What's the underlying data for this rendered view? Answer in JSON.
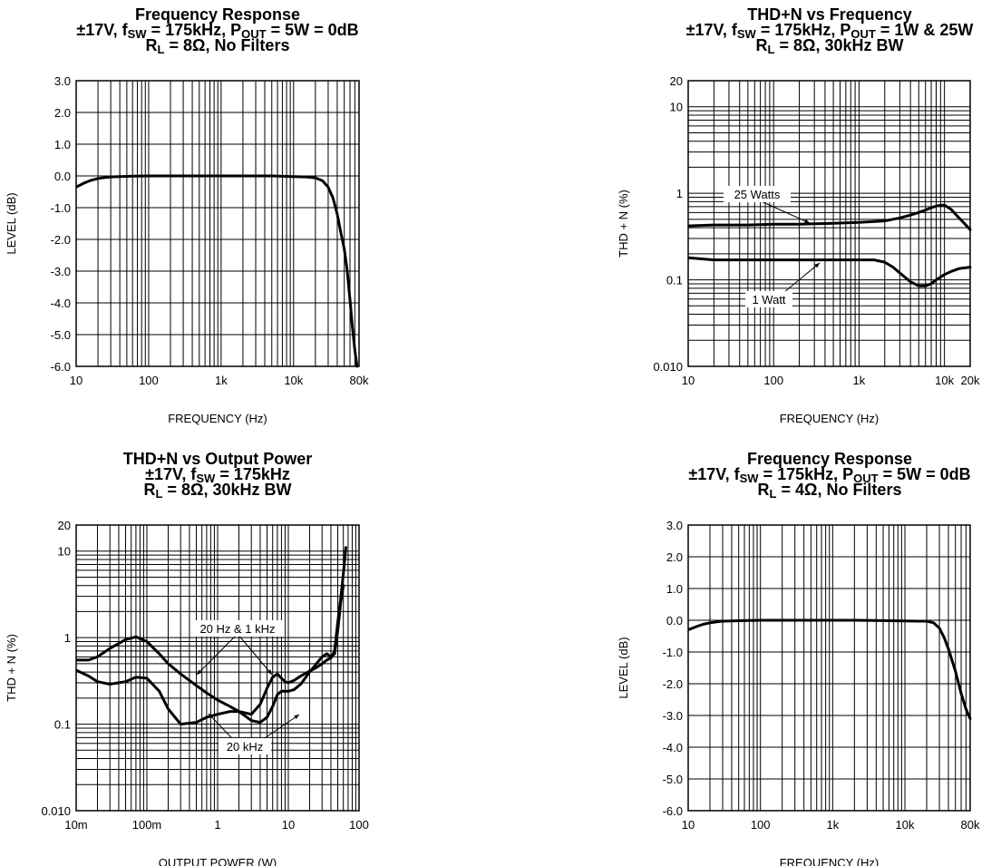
{
  "chart_data": [
    {
      "type": "line",
      "title": {
        "line1": "Frequency Response",
        "line2_pre": "±17V, f",
        "line2_sub1": "SW",
        "line2_mid": " = 175kHz, P",
        "line2_sub2": "OUT",
        "line2_post": " = 5W = 0dB",
        "line3_pre": "R",
        "line3_sub": "L",
        "line3_post": " = 8Ω, No Filters"
      },
      "xlabel": "FREQUENCY (Hz)",
      "ylabel": "LEVEL (dB)",
      "xscale": "log",
      "xlim": [
        10,
        80000
      ],
      "ylim": [
        -6.0,
        3.0
      ],
      "xticks": [
        {
          "v": 10,
          "label": "10"
        },
        {
          "v": 100,
          "label": "100"
        },
        {
          "v": 1000,
          "label": "1k"
        },
        {
          "v": 10000,
          "label": "10k"
        },
        {
          "v": 80000,
          "label": "80k"
        }
      ],
      "yticks": [
        {
          "v": 3,
          "label": "3.0"
        },
        {
          "v": 2,
          "label": "2.0"
        },
        {
          "v": 1,
          "label": "1.0"
        },
        {
          "v": 0,
          "label": "0.0"
        },
        {
          "v": -1,
          "label": "-1.0"
        },
        {
          "v": -2,
          "label": "-2.0"
        },
        {
          "v": -3,
          "label": "-3.0"
        },
        {
          "v": -4,
          "label": "-4.0"
        },
        {
          "v": -5,
          "label": "-5.0"
        },
        {
          "v": -6,
          "label": "-6.0"
        }
      ],
      "grid": true,
      "series": [
        {
          "x": [
            10,
            13,
            16,
            20,
            25,
            30,
            40,
            60,
            100,
            200,
            500,
            1000,
            2000,
            5000,
            10000,
            15000,
            20000,
            25000,
            30000,
            35000,
            40000,
            45000,
            50000,
            55000,
            60000,
            65000,
            70000,
            75000
          ],
          "y": [
            -0.35,
            -0.22,
            -0.14,
            -0.08,
            -0.05,
            -0.03,
            -0.02,
            -0.01,
            0,
            0,
            0,
            0,
            0,
            0,
            -0.02,
            -0.03,
            -0.06,
            -0.15,
            -0.35,
            -0.7,
            -1.2,
            -1.8,
            -2.3,
            -3.0,
            -3.9,
            -4.8,
            -5.5,
            -6.0
          ],
          "stroke": "#000000"
        }
      ]
    },
    {
      "type": "line",
      "title": {
        "line1": "THD+N vs Frequency",
        "line2_pre": "±17V, f",
        "line2_sub1": "SW",
        "line2_mid": " = 175kHz, P",
        "line2_sub2": "OUT",
        "line2_post": " = 1W & 25W",
        "line3_pre": "R",
        "line3_sub": "L",
        "line3_post": " = 8Ω, 30kHz BW"
      },
      "xlabel": "FREQUENCY (Hz)",
      "ylabel": "THD + N (%)",
      "xscale": "log",
      "yscale": "log",
      "xlim": [
        10,
        20000
      ],
      "ylim": [
        0.01,
        20
      ],
      "xticks": [
        {
          "v": 10,
          "label": "10"
        },
        {
          "v": 100,
          "label": "100"
        },
        {
          "v": 1000,
          "label": "1k"
        },
        {
          "v": 10000,
          "label": "10k"
        },
        {
          "v": 20000,
          "label": "20k"
        }
      ],
      "yticks": [
        {
          "v": 20,
          "label": "20"
        },
        {
          "v": 10,
          "label": "10"
        },
        {
          "v": 1,
          "label": "1"
        },
        {
          "v": 0.1,
          "label": "0.1"
        },
        {
          "v": 0.01,
          "label": "0.010"
        }
      ],
      "grid": true,
      "series": [
        {
          "name": "25 Watts",
          "x": [
            10,
            20,
            50,
            100,
            200,
            500,
            1000,
            2000,
            3000,
            4000,
            5000,
            6000,
            7000,
            8000,
            9000,
            10000,
            12000,
            14000,
            17000,
            20000
          ],
          "y": [
            0.42,
            0.43,
            0.43,
            0.44,
            0.44,
            0.45,
            0.46,
            0.48,
            0.52,
            0.56,
            0.6,
            0.64,
            0.68,
            0.71,
            0.73,
            0.73,
            0.65,
            0.55,
            0.45,
            0.38
          ]
        },
        {
          "name": "1 Watt",
          "x": [
            10,
            20,
            50,
            100,
            200,
            500,
            1000,
            1500,
            2000,
            2500,
            3000,
            4000,
            5000,
            6000,
            7000,
            8000,
            10000,
            12000,
            15000,
            20000
          ],
          "y": [
            0.18,
            0.17,
            0.17,
            0.17,
            0.17,
            0.17,
            0.17,
            0.17,
            0.16,
            0.14,
            0.12,
            0.095,
            0.085,
            0.085,
            0.09,
            0.1,
            0.115,
            0.125,
            0.135,
            0.14
          ]
        }
      ],
      "annotations": [
        {
          "text": "25 Watts",
          "x": 500,
          "y": 0.47
        },
        {
          "text": "1 Watt",
          "x": 350,
          "y": 0.17
        }
      ]
    },
    {
      "type": "line",
      "title": {
        "line1": "THD+N vs Output Power",
        "line2_pre": "±17V, f",
        "line2_sub1": "SW",
        "line2_mid": " = 175kHz",
        "line2_sub2": "",
        "line2_post": "",
        "line3_pre": "R",
        "line3_sub": "L",
        "line3_post": " = 8Ω, 30kHz BW"
      },
      "xlabel": "OUTPUT POWER (W)",
      "ylabel": "THD + N (%)",
      "xscale": "log",
      "yscale": "log",
      "xlim": [
        0.01,
        100
      ],
      "ylim": [
        0.01,
        20
      ],
      "xticks": [
        {
          "v": 0.01,
          "label": "10m"
        },
        {
          "v": 0.1,
          "label": "100m"
        },
        {
          "v": 1,
          "label": "1"
        },
        {
          "v": 10,
          "label": "10"
        },
        {
          "v": 100,
          "label": "100"
        }
      ],
      "yticks": [
        {
          "v": 20,
          "label": "20"
        },
        {
          "v": 10,
          "label": "10"
        },
        {
          "v": 1,
          "label": "1"
        },
        {
          "v": 0.1,
          "label": "0.1"
        },
        {
          "v": 0.01,
          "label": "0.010"
        }
      ],
      "grid": true,
      "series": [
        {
          "name": "20 Hz & 1 kHz",
          "x": [
            0.01,
            0.015,
            0.02,
            0.03,
            0.05,
            0.07,
            0.1,
            0.15,
            0.2,
            0.3,
            0.5,
            0.7,
            1,
            1.5,
            2,
            3,
            4,
            5,
            6,
            7,
            8,
            9,
            10,
            12,
            15,
            20,
            25,
            30,
            35,
            40,
            45,
            50,
            55,
            60,
            65
          ],
          "y": [
            0.55,
            0.55,
            0.6,
            0.75,
            0.95,
            1.02,
            0.9,
            0.65,
            0.5,
            0.38,
            0.28,
            0.23,
            0.19,
            0.16,
            0.14,
            0.13,
            0.17,
            0.26,
            0.35,
            0.38,
            0.34,
            0.31,
            0.3,
            0.32,
            0.36,
            0.41,
            0.45,
            0.5,
            0.55,
            0.58,
            0.7,
            1.5,
            2.8,
            5.5,
            11
          ]
        },
        {
          "name": "20 kHz",
          "x": [
            0.01,
            0.015,
            0.02,
            0.03,
            0.05,
            0.07,
            0.1,
            0.15,
            0.2,
            0.3,
            0.5,
            0.7,
            1,
            1.5,
            2,
            3,
            4,
            5,
            6,
            7,
            8,
            10,
            12,
            15,
            20,
            25,
            30,
            35,
            40,
            45,
            50,
            55,
            60
          ],
          "y": [
            0.42,
            0.36,
            0.31,
            0.29,
            0.31,
            0.35,
            0.34,
            0.24,
            0.15,
            0.1,
            0.105,
            0.12,
            0.13,
            0.14,
            0.14,
            0.11,
            0.105,
            0.12,
            0.16,
            0.22,
            0.24,
            0.24,
            0.25,
            0.29,
            0.4,
            0.5,
            0.6,
            0.65,
            0.6,
            0.65,
            1.2,
            2.5,
            4
          ]
        }
      ],
      "annotations": [
        {
          "text": "20 Hz & 1 kHz",
          "x": 1.2,
          "y": 0.95
        },
        {
          "text": "20 kHz",
          "x": 2,
          "y": 0.065
        }
      ]
    },
    {
      "type": "line",
      "title": {
        "line1": "Frequency Response",
        "line2_pre": "±17V, f",
        "line2_sub1": "SW",
        "line2_mid": " = 175kHz, P",
        "line2_sub2": "OUT",
        "line2_post": " = 5W = 0dB",
        "line3_pre": "R",
        "line3_sub": "L",
        "line3_post": " = 4Ω, No Filters"
      },
      "xlabel": "FREQUENCY (Hz)",
      "ylabel": "LEVEL (dB)",
      "xscale": "log",
      "xlim": [
        10,
        80000
      ],
      "ylim": [
        -6.0,
        3.0
      ],
      "xticks": [
        {
          "v": 10,
          "label": "10"
        },
        {
          "v": 100,
          "label": "100"
        },
        {
          "v": 1000,
          "label": "1k"
        },
        {
          "v": 10000,
          "label": "10k"
        },
        {
          "v": 80000,
          "label": "80k"
        }
      ],
      "yticks": [
        {
          "v": 3,
          "label": "3.0"
        },
        {
          "v": 2,
          "label": "2.0"
        },
        {
          "v": 1,
          "label": "1.0"
        },
        {
          "v": 0,
          "label": "0.0"
        },
        {
          "v": -1,
          "label": "-1.0"
        },
        {
          "v": -2,
          "label": "-2.0"
        },
        {
          "v": -3,
          "label": "-3.0"
        },
        {
          "v": -4,
          "label": "-4.0"
        },
        {
          "v": -5,
          "label": "-5.0"
        },
        {
          "v": -6,
          "label": "-6.0"
        }
      ],
      "grid": true,
      "series": [
        {
          "x": [
            10,
            13,
            16,
            20,
            25,
            30,
            40,
            60,
            100,
            200,
            500,
            1000,
            2000,
            5000,
            10000,
            15000,
            20000,
            25000,
            30000,
            35000,
            40000,
            50000,
            60000,
            70000,
            80000
          ],
          "y": [
            -0.3,
            -0.2,
            -0.13,
            -0.08,
            -0.05,
            -0.03,
            -0.02,
            -0.01,
            0,
            0,
            0,
            0,
            0,
            -0.01,
            -0.02,
            -0.03,
            -0.03,
            -0.08,
            -0.25,
            -0.55,
            -0.9,
            -1.6,
            -2.3,
            -2.8,
            -3.1
          ]
        }
      ]
    }
  ]
}
